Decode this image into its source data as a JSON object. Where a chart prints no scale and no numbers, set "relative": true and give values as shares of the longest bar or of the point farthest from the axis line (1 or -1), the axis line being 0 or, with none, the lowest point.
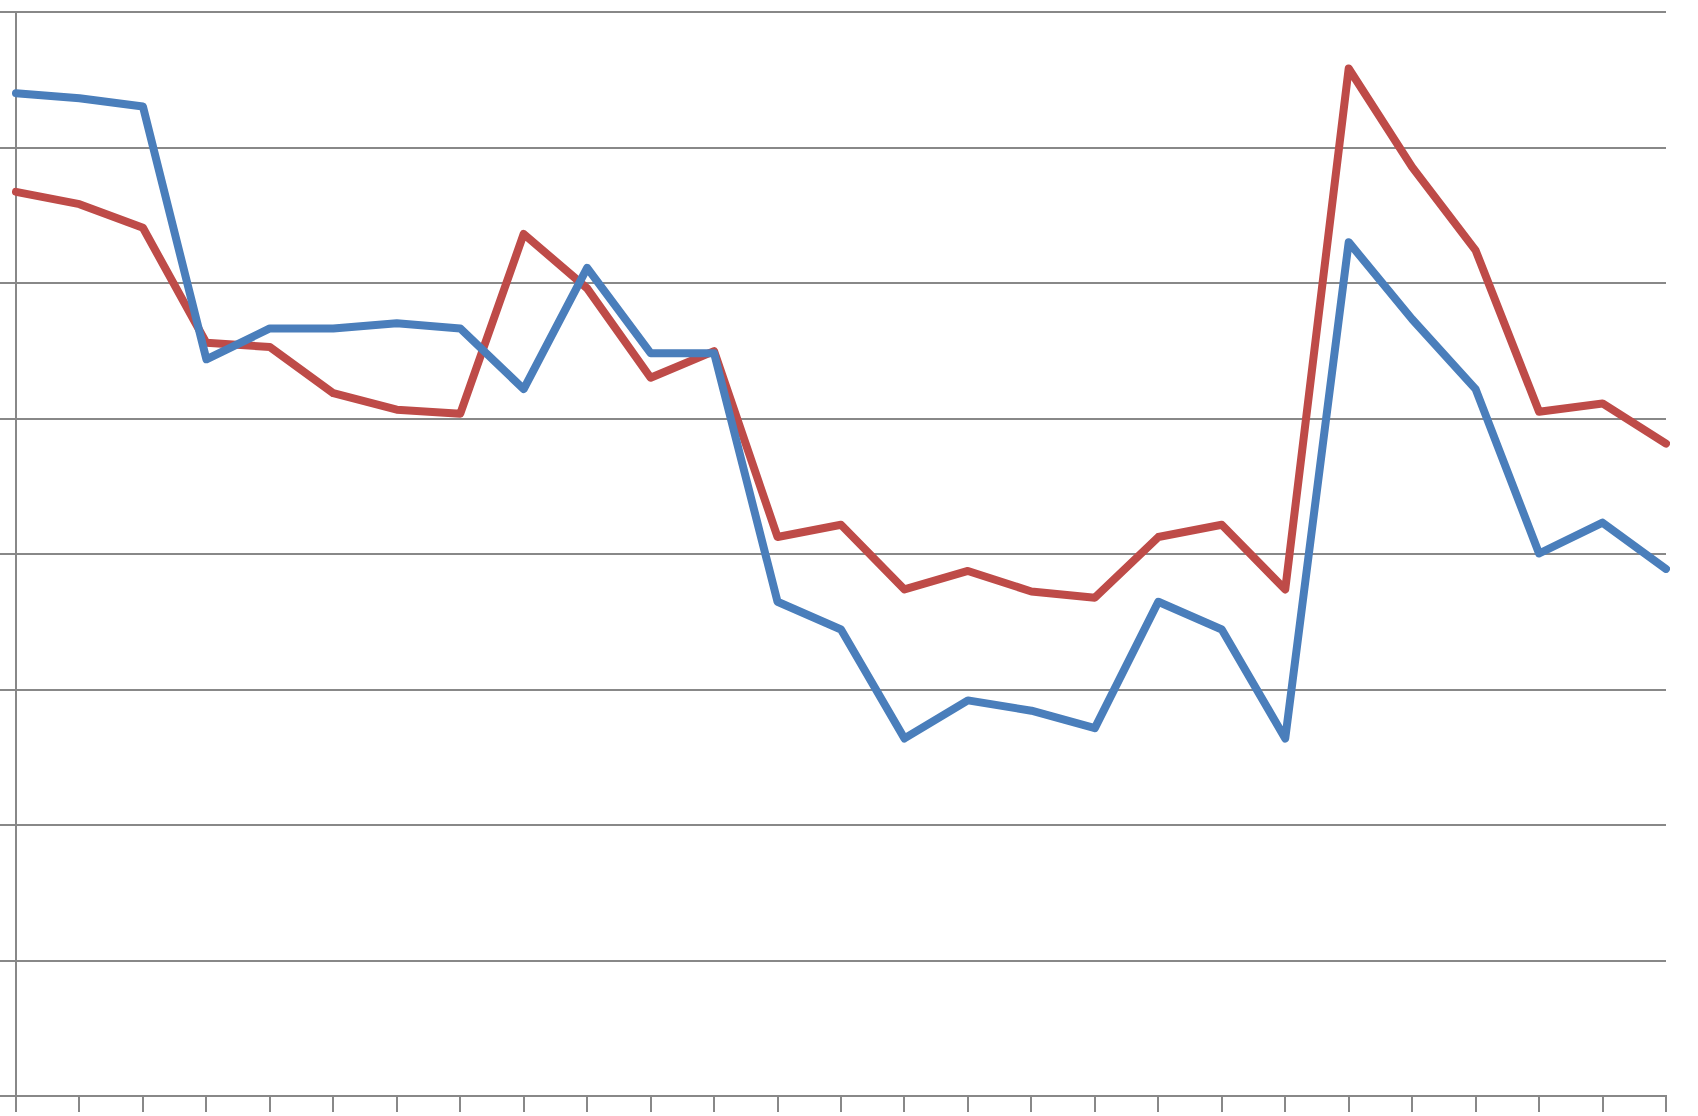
{
  "chart_data": {
    "type": "line",
    "relative": true,
    "grid": "y",
    "legend": false,
    "tick_labels": false,
    "marker": "none",
    "line_style": "solid",
    "categories": [
      null,
      null,
      null,
      null,
      null,
      null,
      null,
      null,
      null,
      null,
      null,
      null,
      null,
      null,
      null,
      null,
      null,
      null,
      null,
      null,
      null,
      null,
      null,
      null,
      null,
      null,
      null
    ],
    "series": [
      {
        "color": "#4a7ebb",
        "values": [
          0.976,
          0.971,
          0.963,
          0.717,
          0.747,
          0.747,
          0.752,
          0.747,
          0.688,
          0.806,
          0.723,
          0.723,
          0.481,
          0.454,
          0.348,
          0.385,
          0.375,
          0.358,
          0.481,
          0.454,
          0.348,
          0.831,
          0.756,
          0.688,
          0.528,
          0.558,
          0.513
        ]
      },
      {
        "color": "#be4b48",
        "values": [
          0.88,
          0.868,
          0.845,
          0.733,
          0.729,
          0.684,
          0.668,
          0.664,
          0.839,
          0.786,
          0.699,
          0.725,
          0.544,
          0.556,
          0.493,
          0.511,
          0.491,
          0.485,
          0.544,
          0.556,
          0.493,
          1,
          0.904,
          0.823,
          0.666,
          0.674,
          0.635
        ]
      }
    ]
  }
}
